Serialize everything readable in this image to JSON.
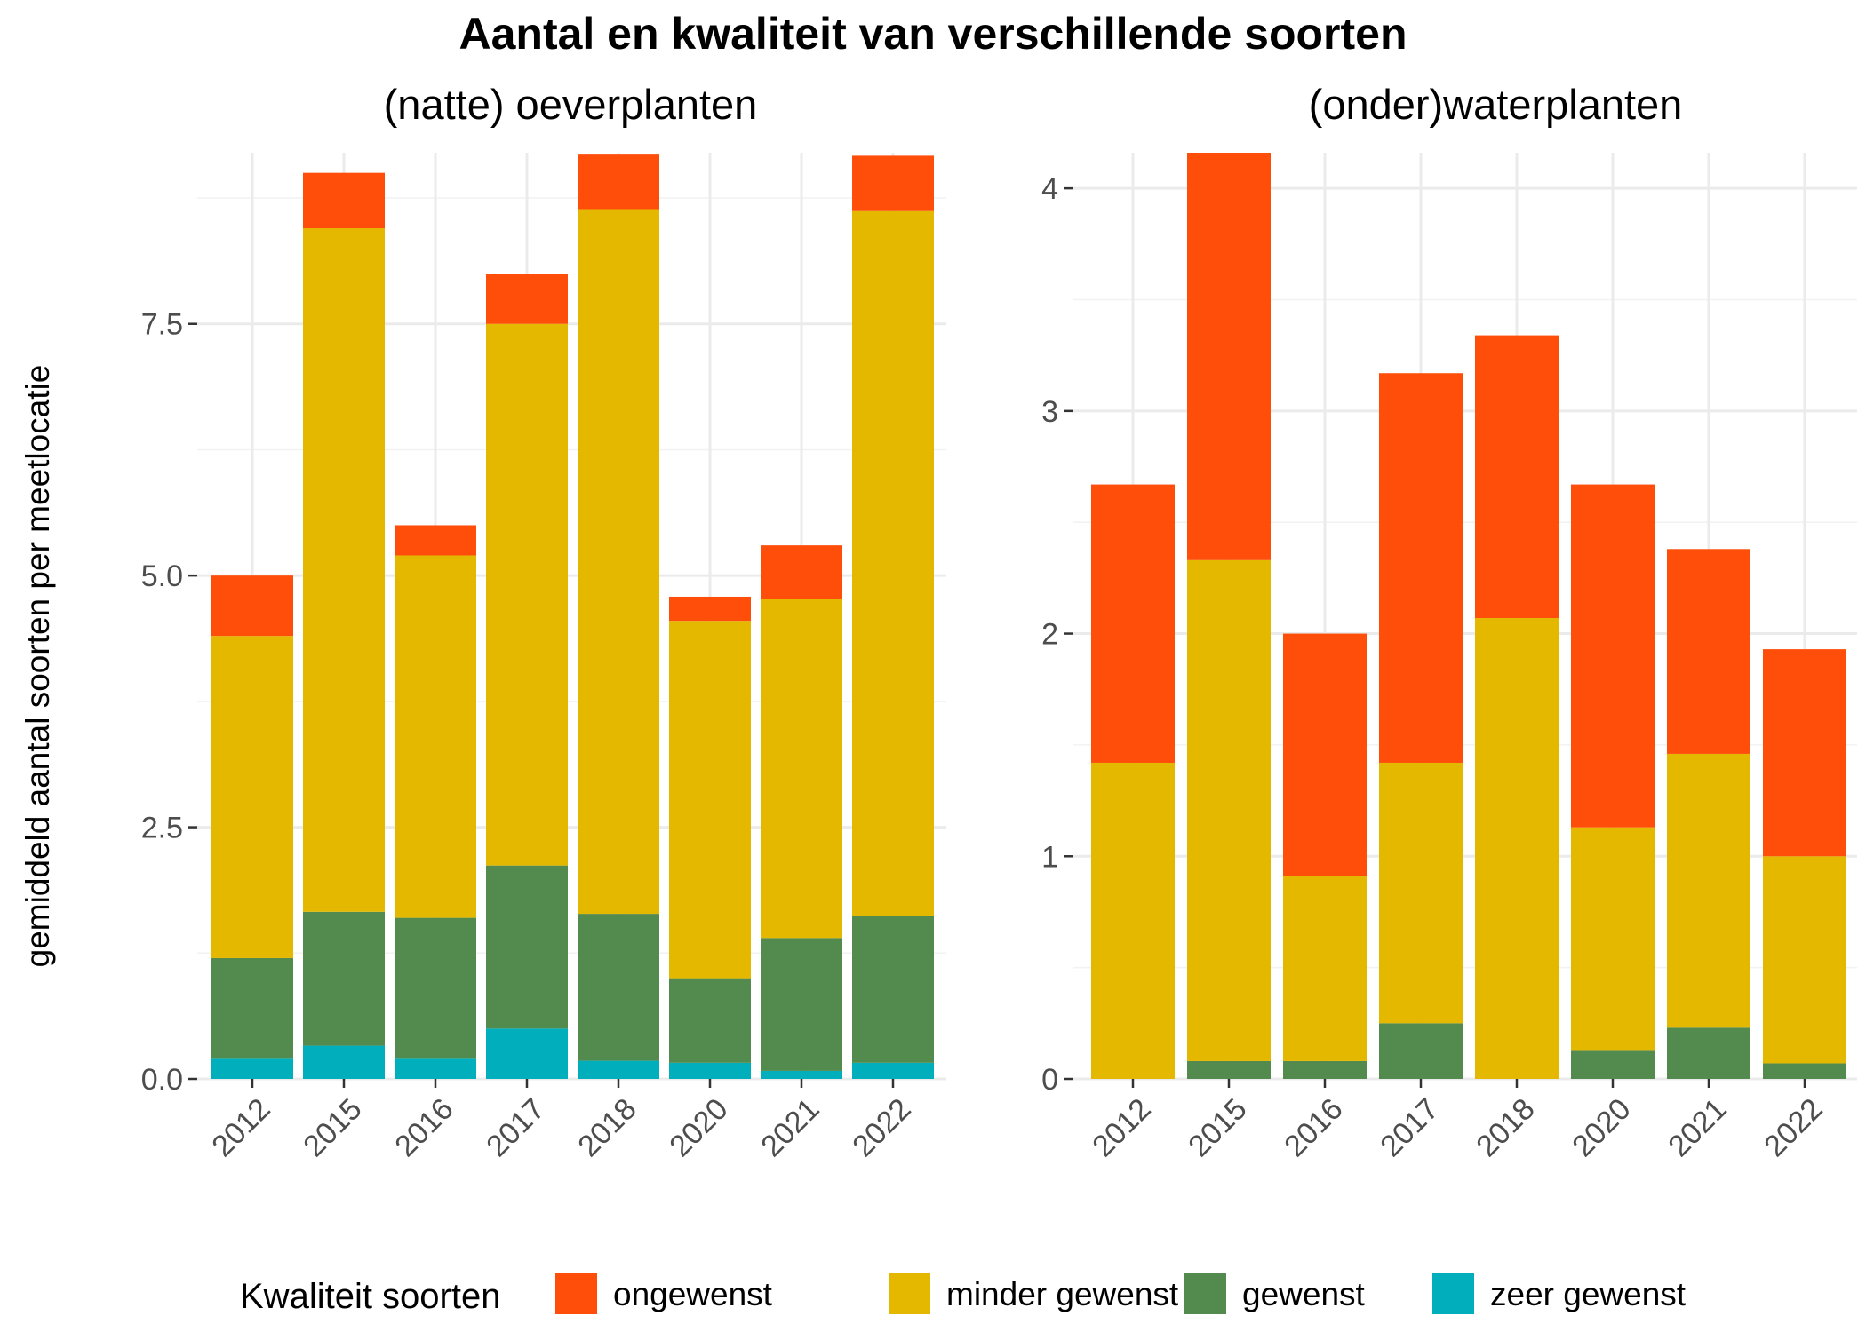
{
  "title": "Aantal en kwaliteit van verschillende soorten",
  "y_axis_label": "gemiddeld aantal soorten per meetlocatie",
  "legend": {
    "title": "Kwaliteit soorten",
    "items": [
      {
        "key": "ongewenst",
        "label": "ongewenst",
        "color": "#FF4E0A"
      },
      {
        "key": "minder_gewenst",
        "label": "minder gewenst",
        "color": "#E5B800"
      },
      {
        "key": "gewenst",
        "label": "gewenst",
        "color": "#528B4D"
      },
      {
        "key": "zeer_gewenst",
        "label": "zeer gewenst",
        "color": "#00AFBB"
      }
    ]
  },
  "chart_data": [
    {
      "type": "bar",
      "stacked": true,
      "title": "(natte) oeverplanten",
      "categories": [
        "2012",
        "2015",
        "2016",
        "2017",
        "2018",
        "2020",
        "2021",
        "2022"
      ],
      "ylim": [
        0,
        9.2
      ],
      "yticks": [
        0,
        2.5,
        5,
        7.5
      ],
      "ytick_labels": [
        "0.0",
        "2.5",
        "5.0",
        "7.5"
      ],
      "grid": true,
      "series": [
        {
          "name": "zeer gewenst",
          "values": [
            0.2,
            0.33,
            0.2,
            0.5,
            0.18,
            0.16,
            0.08,
            0.16
          ]
        },
        {
          "name": "gewenst",
          "values": [
            1.0,
            1.33,
            1.4,
            1.62,
            1.46,
            0.84,
            1.32,
            1.46
          ]
        },
        {
          "name": "minder gewenst",
          "values": [
            3.2,
            6.79,
            3.6,
            5.38,
            7.0,
            3.55,
            3.37,
            7.0
          ]
        },
        {
          "name": "ongewenst",
          "values": [
            0.6,
            0.55,
            0.3,
            0.5,
            0.55,
            0.24,
            0.53,
            0.55
          ]
        }
      ]
    },
    {
      "type": "bar",
      "stacked": true,
      "title": "(onder)waterplanten",
      "categories": [
        "2012",
        "2015",
        "2016",
        "2017",
        "2018",
        "2020",
        "2021",
        "2022"
      ],
      "ylim": [
        0,
        4.16
      ],
      "yticks": [
        0,
        1,
        2,
        3,
        4
      ],
      "ytick_labels": [
        "0",
        "1",
        "2",
        "3",
        "4"
      ],
      "grid": true,
      "series": [
        {
          "name": "zeer gewenst",
          "values": [
            0,
            0,
            0,
            0,
            0,
            0,
            0,
            0
          ]
        },
        {
          "name": "gewenst",
          "values": [
            0,
            0.08,
            0.08,
            0.25,
            0,
            0.13,
            0.23,
            0.07
          ]
        },
        {
          "name": "minder gewenst",
          "values": [
            1.42,
            2.25,
            0.83,
            1.17,
            2.07,
            1.0,
            1.23,
            0.93
          ]
        },
        {
          "name": "ongewenst",
          "values": [
            1.25,
            1.83,
            1.09,
            1.75,
            1.27,
            1.54,
            0.92,
            0.93
          ]
        }
      ]
    }
  ]
}
